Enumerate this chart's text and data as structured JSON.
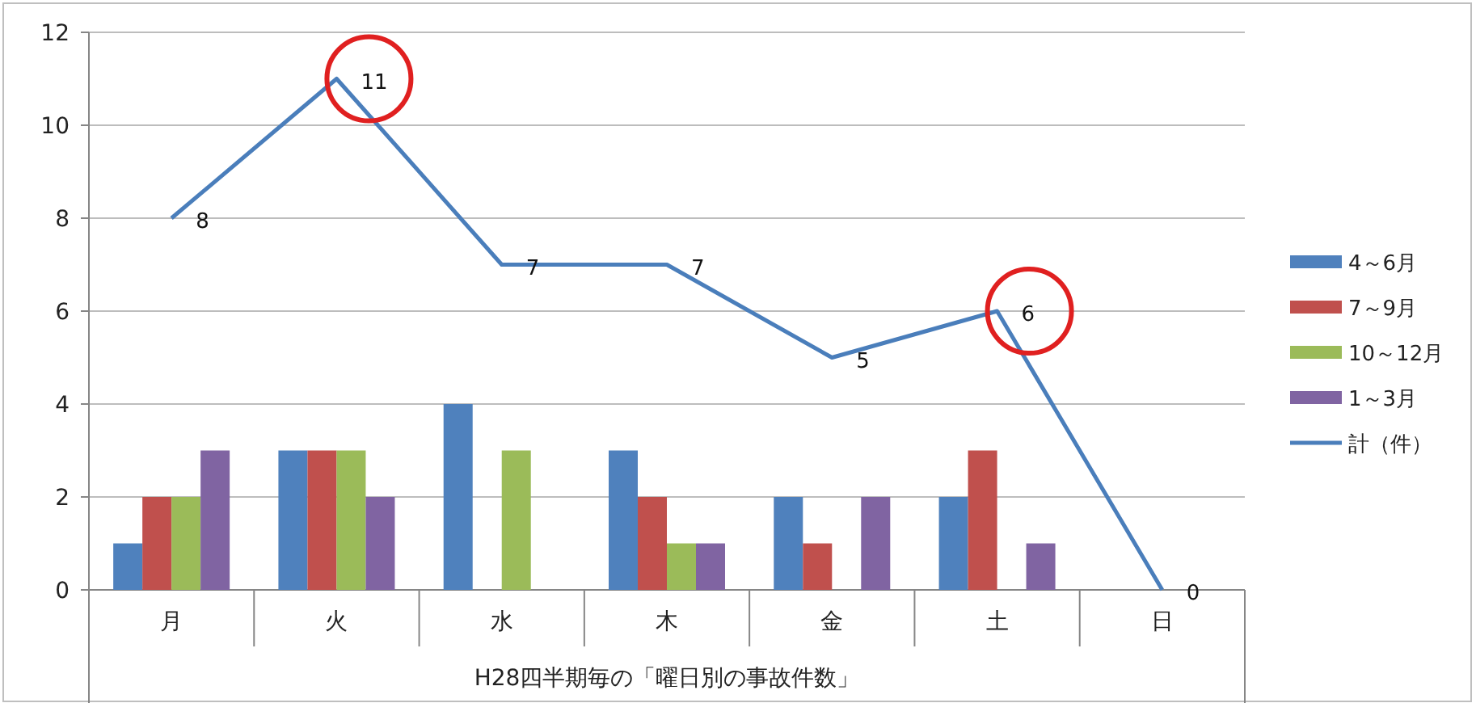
{
  "chart_data": {
    "type": "bar",
    "xlabel": "H28四半期毎の「曜日別の事故件数」",
    "categories": [
      "月",
      "火",
      "水",
      "木",
      "金",
      "土",
      "日"
    ],
    "ylim": [
      0,
      12
    ],
    "yticks": [
      0,
      2,
      4,
      6,
      8,
      10,
      12
    ],
    "grid": "y",
    "legend": "right",
    "series": [
      {
        "name": "4～6月",
        "color": "#4f81bd",
        "values": [
          1,
          3,
          4,
          3,
          2,
          2,
          0
        ]
      },
      {
        "name": "7～9月",
        "color": "#c0504d",
        "values": [
          2,
          3,
          0,
          2,
          1,
          3,
          0
        ]
      },
      {
        "name": "10～12月",
        "color": "#9bbb59",
        "values": [
          2,
          3,
          3,
          1,
          0,
          0,
          0
        ]
      },
      {
        "name": "1～3月",
        "color": "#8064a2",
        "values": [
          3,
          2,
          0,
          1,
          2,
          1,
          0
        ]
      },
      {
        "name": "計（件）",
        "type": "line",
        "color": "#4a7ebb",
        "values": [
          8,
          11,
          7,
          7,
          5,
          6,
          0
        ],
        "value_labels": [
          "8",
          "11",
          "7",
          "7",
          "5",
          "6",
          "0"
        ]
      }
    ]
  }
}
